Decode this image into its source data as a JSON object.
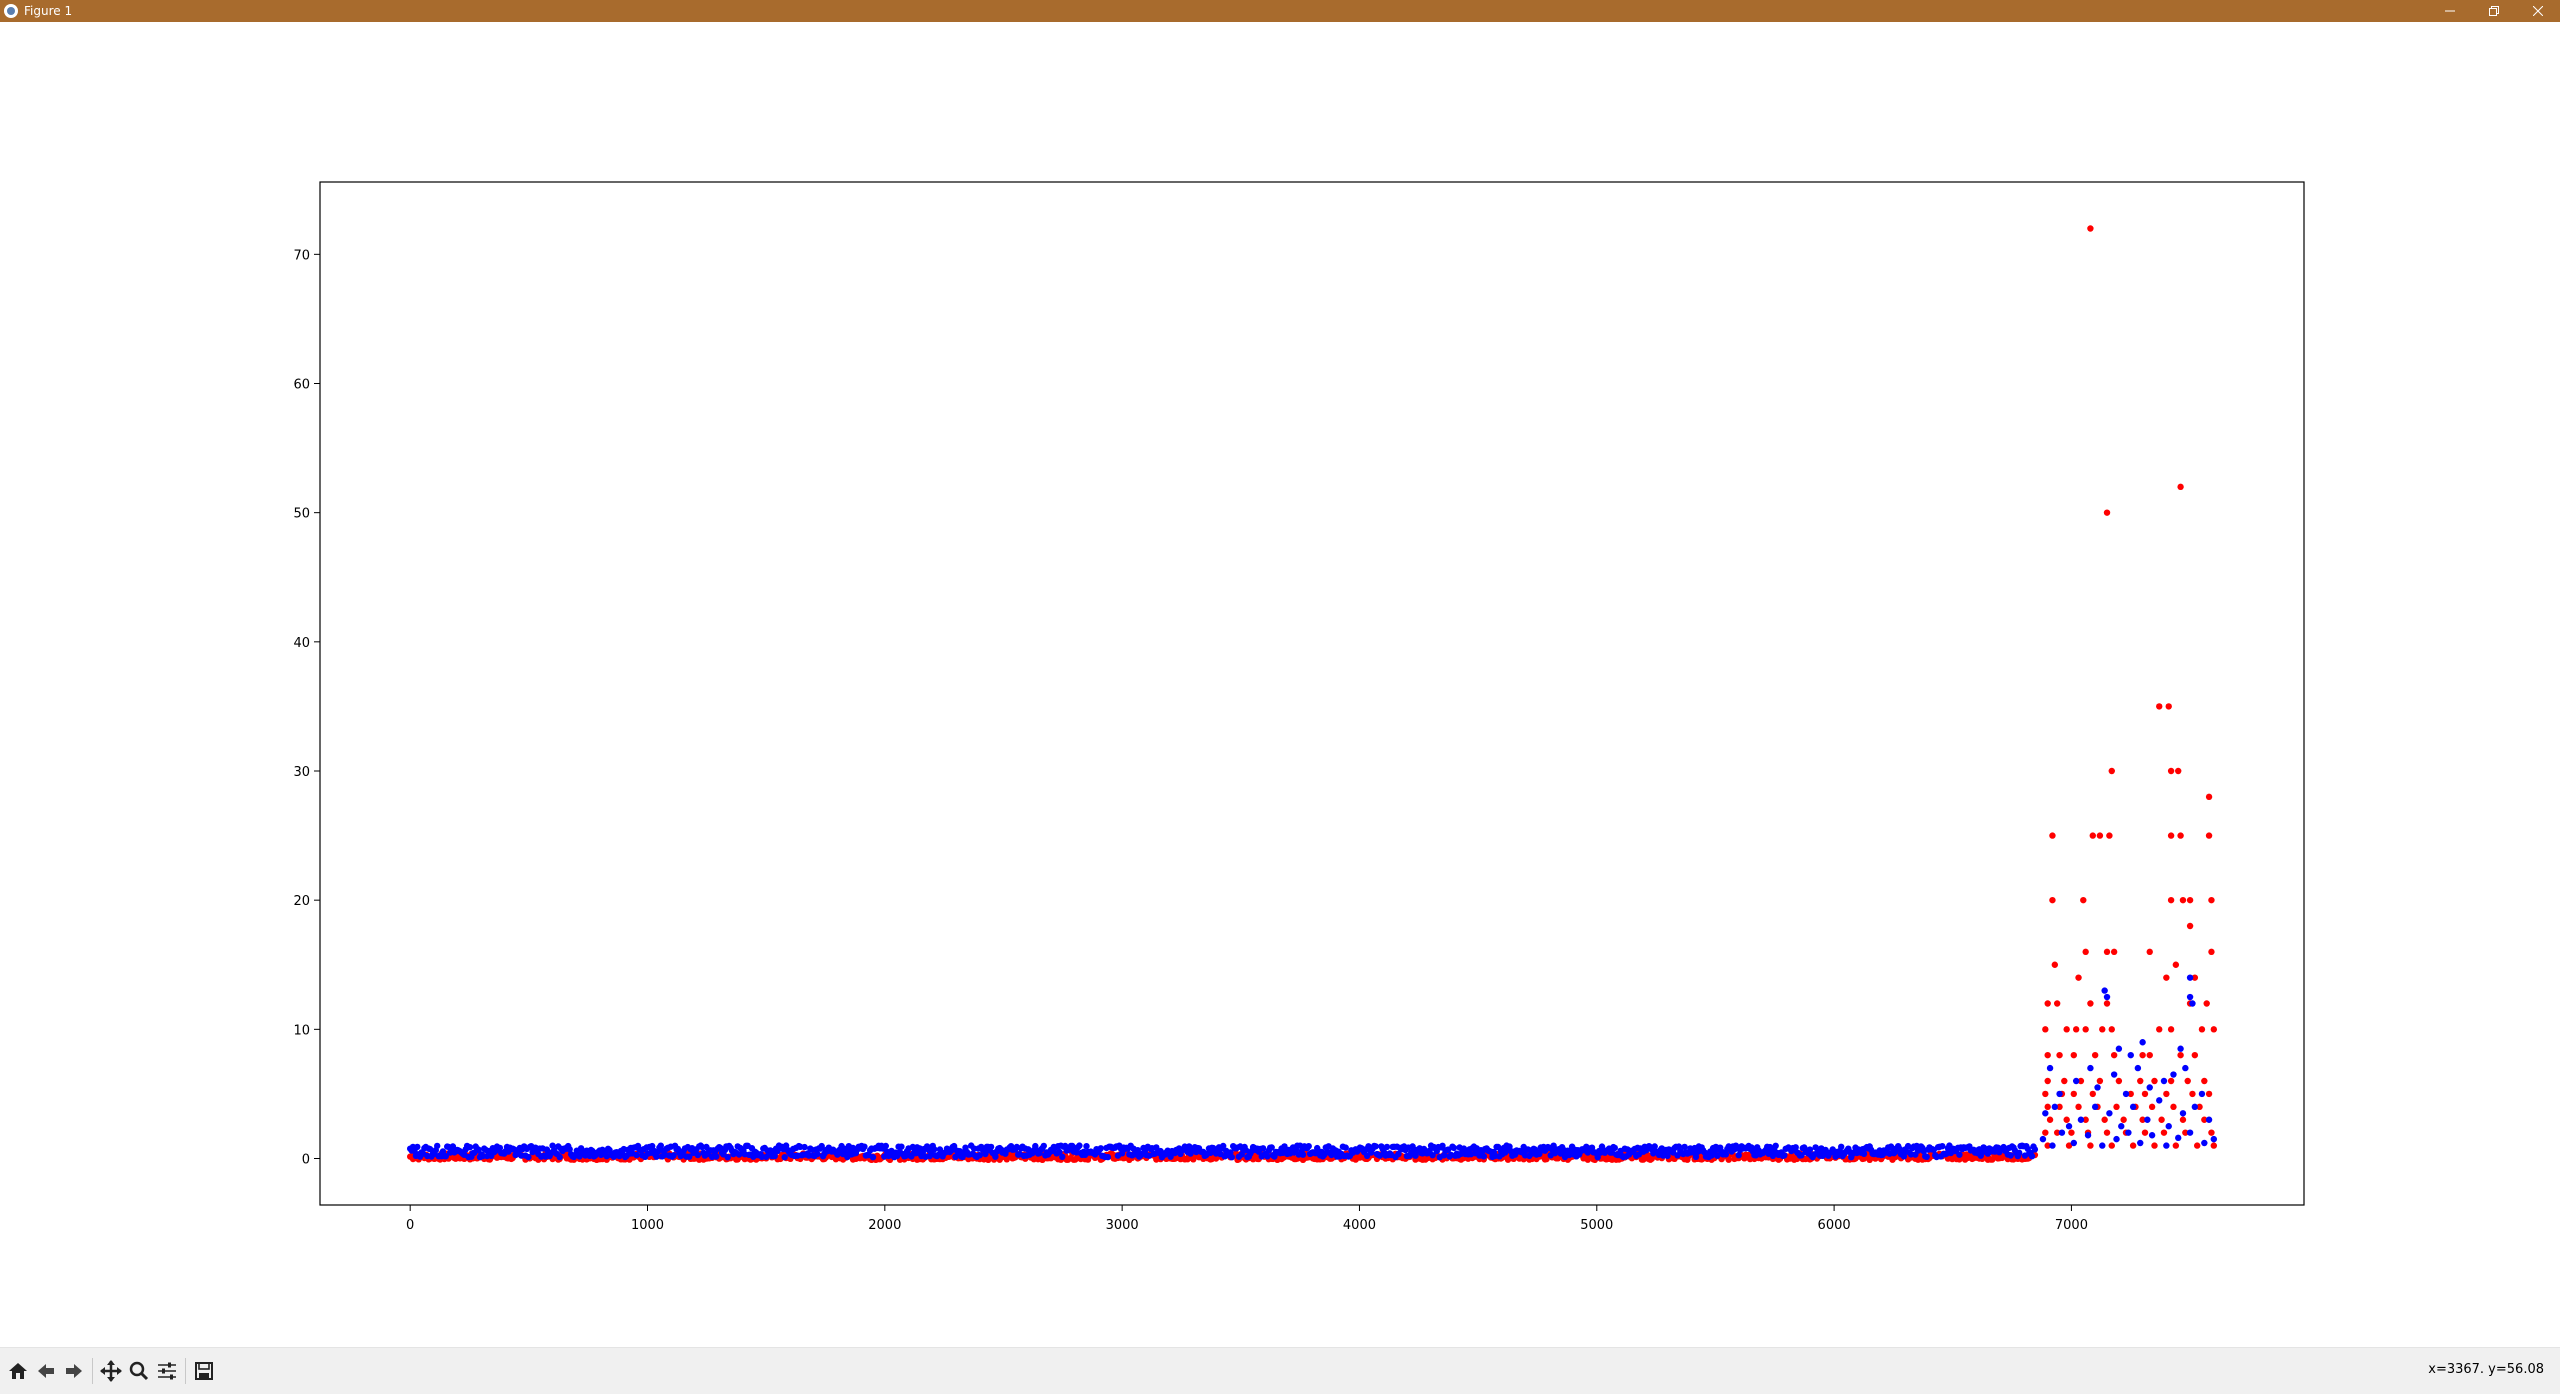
{
  "window": {
    "title": "Figure 1",
    "controls": {
      "minimize_icon": "minimize-icon",
      "maximize_icon": "restore-icon",
      "close_icon": "close-icon"
    }
  },
  "toolbar": {
    "buttons": [
      "home-icon",
      "back-icon",
      "forward-icon",
      "pan-icon",
      "zoom-icon",
      "configure-subplots-icon",
      "save-icon"
    ],
    "coords_text": "x=3367. y=56.08"
  },
  "colors": {
    "titlebar": "#a86b2d",
    "series_red": "#ff0000",
    "series_blue": "#0000ff"
  },
  "chart_data": {
    "type": "scatter",
    "title": "",
    "xlabel": "",
    "ylabel": "",
    "xlim": [
      -380,
      7980
    ],
    "ylim": [
      -3.6,
      75.6
    ],
    "xticks": [
      0,
      1000,
      2000,
      3000,
      4000,
      5000,
      6000,
      7000
    ],
    "yticks": [
      0,
      10,
      20,
      30,
      40,
      50,
      60,
      70
    ],
    "grid": false,
    "legend": "none",
    "series": [
      {
        "color": "#ff0000",
        "note_band": {
          "x_range": [
            0,
            6850
          ],
          "y_range": [
            -0.1,
            0.4
          ]
        },
        "points": [
          [
            7080,
            72
          ],
          [
            7460,
            52
          ],
          [
            7150,
            50
          ],
          [
            7370,
            35
          ],
          [
            7410,
            35
          ],
          [
            7170,
            30
          ],
          [
            7420,
            30
          ],
          [
            7450,
            30
          ],
          [
            7580,
            28
          ],
          [
            6920,
            25
          ],
          [
            7090,
            25
          ],
          [
            7120,
            25
          ],
          [
            7160,
            25
          ],
          [
            7420,
            25
          ],
          [
            7460,
            25
          ],
          [
            7580,
            25
          ],
          [
            6920,
            20
          ],
          [
            7050,
            20
          ],
          [
            7420,
            20
          ],
          [
            7470,
            20
          ],
          [
            7500,
            20
          ],
          [
            7590,
            20
          ],
          [
            7500,
            18
          ],
          [
            7060,
            16
          ],
          [
            7150,
            16
          ],
          [
            7180,
            16
          ],
          [
            7330,
            16
          ],
          [
            7590,
            16
          ],
          [
            6930,
            15
          ],
          [
            7440,
            15
          ],
          [
            7400,
            14
          ],
          [
            7030,
            14
          ],
          [
            7520,
            14
          ],
          [
            6900,
            12
          ],
          [
            6940,
            12
          ],
          [
            7080,
            12
          ],
          [
            7150,
            12
          ],
          [
            7500,
            12
          ],
          [
            7570,
            12
          ],
          [
            6890,
            10
          ],
          [
            6980,
            10
          ],
          [
            7020,
            10
          ],
          [
            7060,
            10
          ],
          [
            7130,
            10
          ],
          [
            7170,
            10
          ],
          [
            7370,
            10
          ],
          [
            7420,
            10
          ],
          [
            7550,
            10
          ],
          [
            7600,
            10
          ],
          [
            6900,
            8
          ],
          [
            6950,
            8
          ],
          [
            7010,
            8
          ],
          [
            7100,
            8
          ],
          [
            7180,
            8
          ],
          [
            7300,
            8
          ],
          [
            7330,
            8
          ],
          [
            7460,
            8
          ],
          [
            7520,
            8
          ],
          [
            6900,
            6
          ],
          [
            6970,
            6
          ],
          [
            7040,
            6
          ],
          [
            7120,
            6
          ],
          [
            7200,
            6
          ],
          [
            7290,
            6
          ],
          [
            7350,
            6
          ],
          [
            7420,
            6
          ],
          [
            7490,
            6
          ],
          [
            7560,
            6
          ],
          [
            6890,
            5
          ],
          [
            6960,
            5
          ],
          [
            7010,
            5
          ],
          [
            7090,
            5
          ],
          [
            7250,
            5
          ],
          [
            7310,
            5
          ],
          [
            7400,
            5
          ],
          [
            7510,
            5
          ],
          [
            7580,
            5
          ],
          [
            6900,
            4
          ],
          [
            6950,
            4
          ],
          [
            7030,
            4
          ],
          [
            7110,
            4
          ],
          [
            7190,
            4
          ],
          [
            7270,
            4
          ],
          [
            7340,
            4
          ],
          [
            7430,
            4
          ],
          [
            7540,
            4
          ],
          [
            6910,
            3
          ],
          [
            6980,
            3
          ],
          [
            7060,
            3
          ],
          [
            7140,
            3
          ],
          [
            7220,
            3
          ],
          [
            7300,
            3
          ],
          [
            7380,
            3
          ],
          [
            7470,
            3
          ],
          [
            7560,
            3
          ],
          [
            6890,
            2
          ],
          [
            6940,
            2
          ],
          [
            7000,
            2
          ],
          [
            7070,
            2
          ],
          [
            7150,
            2
          ],
          [
            7230,
            2
          ],
          [
            7310,
            2
          ],
          [
            7390,
            2
          ],
          [
            7480,
            2
          ],
          [
            7590,
            2
          ],
          [
            6900,
            1
          ],
          [
            6990,
            1
          ],
          [
            7080,
            1
          ],
          [
            7170,
            1
          ],
          [
            7260,
            1
          ],
          [
            7350,
            1
          ],
          [
            7440,
            1
          ],
          [
            7530,
            1
          ],
          [
            7600,
            1
          ]
        ]
      },
      {
        "color": "#0000ff",
        "note_band": {
          "x_range": [
            0,
            6850
          ],
          "y_range": [
            0.1,
            1.0
          ]
        },
        "points": [
          [
            7140,
            13
          ],
          [
            7150,
            12.5
          ],
          [
            7500,
            14
          ],
          [
            7500,
            12.5
          ],
          [
            7510,
            12
          ],
          [
            7200,
            8.5
          ],
          [
            7250,
            8
          ],
          [
            7300,
            9
          ],
          [
            7460,
            8.5
          ],
          [
            7430,
            6.5
          ],
          [
            6910,
            7
          ],
          [
            6950,
            5
          ],
          [
            7020,
            6
          ],
          [
            7080,
            7
          ],
          [
            7110,
            5.5
          ],
          [
            7180,
            6.5
          ],
          [
            7230,
            5
          ],
          [
            7280,
            7
          ],
          [
            7330,
            5.5
          ],
          [
            7390,
            6
          ],
          [
            7480,
            7
          ],
          [
            7550,
            5
          ],
          [
            6890,
            3.5
          ],
          [
            6930,
            4
          ],
          [
            6990,
            2.5
          ],
          [
            7040,
            3
          ],
          [
            7100,
            4
          ],
          [
            7160,
            3.5
          ],
          [
            7210,
            2.5
          ],
          [
            7260,
            4
          ],
          [
            7320,
            3
          ],
          [
            7370,
            4.5
          ],
          [
            7410,
            2.5
          ],
          [
            7470,
            3.5
          ],
          [
            7520,
            4
          ],
          [
            7580,
            3
          ],
          [
            6880,
            1.5
          ],
          [
            6920,
            1
          ],
          [
            6960,
            2
          ],
          [
            7010,
            1.2
          ],
          [
            7070,
            1.8
          ],
          [
            7130,
            1
          ],
          [
            7190,
            1.5
          ],
          [
            7240,
            2
          ],
          [
            7290,
            1.2
          ],
          [
            7340,
            1.8
          ],
          [
            7400,
            1
          ],
          [
            7450,
            1.6
          ],
          [
            7500,
            2
          ],
          [
            7560,
            1.2
          ],
          [
            7600,
            1.5
          ]
        ]
      }
    ]
  }
}
